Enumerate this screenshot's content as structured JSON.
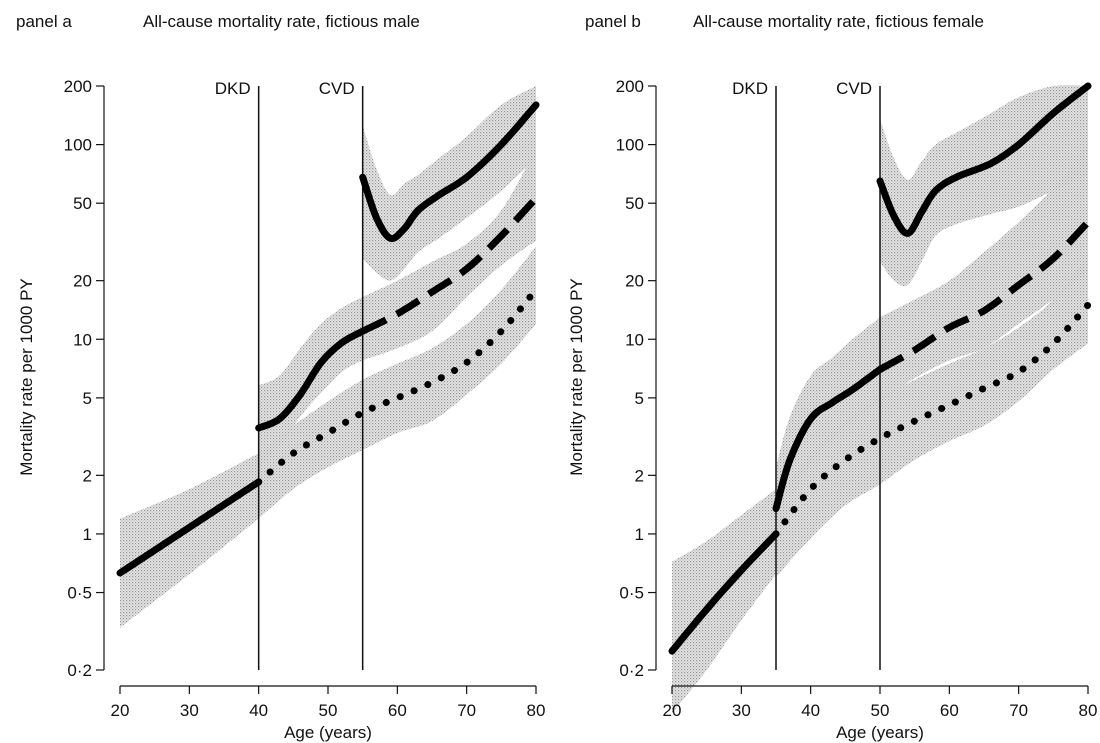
{
  "chart_data": [
    {
      "type": "line",
      "panel_label": "panel a",
      "title": "All-cause mortality rate, fictious male",
      "xlabel": "Age (years)",
      "ylabel": "Mortality rate per 1000 PY",
      "xlim": [
        20,
        80
      ],
      "ylim": [
        0.2,
        200
      ],
      "yscale": "log",
      "grid": false,
      "x_ticks": [
        20,
        30,
        40,
        50,
        60,
        70,
        80
      ],
      "x_tick_labels": [
        "20",
        "30",
        "40",
        "50",
        "60",
        "70",
        "80"
      ],
      "y_ticks": [
        0.2,
        0.5,
        1,
        2,
        5,
        10,
        20,
        50,
        100,
        200
      ],
      "y_tick_labels": [
        "0·2",
        "0·5",
        "1",
        "2",
        "5",
        "10",
        "20",
        "50",
        "100",
        "200"
      ],
      "events": [
        {
          "label": "DKD",
          "x": 40
        },
        {
          "label": "CVD",
          "x": 55
        }
      ],
      "series": [
        {
          "style": "solid",
          "x": [
            20,
            30,
            40
          ],
          "y": [
            0.63,
            1.08,
            1.85
          ],
          "lower": [
            0.33,
            0.62,
            1.2
          ],
          "upper": [
            1.2,
            1.7,
            2.6
          ]
        },
        {
          "style": "solid",
          "x": [
            40,
            43,
            46,
            49,
            52,
            55
          ],
          "y": [
            3.5,
            3.9,
            5.2,
            7.6,
            9.6,
            11
          ],
          "lower": [
            2.2,
            2.8,
            4.0,
            5.3,
            6.8,
            7.8
          ],
          "upper": [
            5.8,
            6.5,
            9.0,
            12,
            14.5,
            16.5
          ]
        },
        {
          "style": "dashed",
          "x": [
            55,
            60,
            65,
            70,
            75,
            80
          ],
          "y": [
            11,
            13.5,
            17.5,
            23,
            34,
            53
          ],
          "lower": [
            7.8,
            9.0,
            11,
            16.5,
            24,
            32
          ],
          "upper": [
            16.5,
            20,
            25,
            31,
            46,
            95
          ]
        },
        {
          "style": "dotted",
          "x": [
            40,
            45,
            50,
            55,
            60,
            65,
            70,
            75,
            80
          ],
          "y": [
            1.85,
            2.6,
            3.3,
            4.2,
            5.0,
            6.0,
            7.6,
            11,
            18
          ],
          "lower": [
            1.2,
            1.7,
            2.2,
            2.7,
            3.3,
            3.8,
            5.2,
            7.5,
            12
          ],
          "upper": [
            2.6,
            3.6,
            4.8,
            6.2,
            7.5,
            9.0,
            12,
            18,
            30
          ]
        },
        {
          "style": "solid",
          "x": [
            55,
            57,
            59,
            61,
            63,
            66,
            70,
            75,
            80
          ],
          "y": [
            68,
            42,
            33,
            37,
            46,
            55,
            68,
            100,
            160
          ],
          "lower": [
            26,
            22,
            20,
            23,
            28,
            33,
            42,
            58,
            85
          ],
          "upper": [
            125,
            75,
            55,
            63,
            70,
            85,
            110,
            160,
            200
          ]
        }
      ]
    },
    {
      "type": "line",
      "panel_label": "panel b",
      "title": "All-cause mortality rate, fictious female",
      "xlabel": "Age (years)",
      "ylabel": "Mortality rate per 1000 PY",
      "xlim": [
        20,
        80
      ],
      "ylim": [
        0.2,
        200
      ],
      "yscale": "log",
      "grid": false,
      "x_ticks": [
        20,
        30,
        40,
        50,
        60,
        70,
        80
      ],
      "x_tick_labels": [
        "20",
        "30",
        "40",
        "50",
        "60",
        "70",
        "80"
      ],
      "y_ticks": [
        0.2,
        0.5,
        1,
        2,
        5,
        10,
        20,
        50,
        100,
        200
      ],
      "y_tick_labels": [
        "0·2",
        "0·5",
        "1",
        "2",
        "5",
        "10",
        "20",
        "50",
        "100",
        "200"
      ],
      "events": [
        {
          "label": "DKD",
          "x": 35
        },
        {
          "label": "CVD",
          "x": 50
        }
      ],
      "series": [
        {
          "style": "solid",
          "x": [
            20,
            25,
            30,
            35
          ],
          "y": [
            0.25,
            0.41,
            0.65,
            1.0
          ],
          "lower": [
            0.12,
            0.2,
            0.36,
            0.62
          ],
          "upper": [
            0.72,
            0.92,
            1.25,
            1.7
          ]
        },
        {
          "style": "solid",
          "x": [
            35,
            37,
            40,
            43,
            46,
            50
          ],
          "y": [
            1.35,
            2.4,
            3.9,
            4.7,
            5.5,
            7.0
          ],
          "lower": [
            0.72,
            1.4,
            2.3,
            3.0,
            3.8,
            4.8
          ],
          "upper": [
            2.2,
            4.0,
            6.5,
            8.0,
            10,
            13
          ]
        },
        {
          "style": "dashed",
          "x": [
            50,
            55,
            60,
            65,
            70,
            75,
            80
          ],
          "y": [
            7.0,
            8.8,
            11.5,
            14,
            19,
            26,
            40
          ],
          "lower": [
            4.8,
            6.3,
            7.8,
            9.0,
            12,
            16,
            22
          ],
          "upper": [
            13,
            16,
            20,
            28,
            40,
            60,
            100
          ]
        },
        {
          "style": "dotted",
          "x": [
            35,
            40,
            45,
            50,
            55,
            60,
            65,
            70,
            75,
            80
          ],
          "y": [
            1.0,
            1.7,
            2.4,
            3.1,
            3.8,
            4.6,
            5.6,
            6.8,
            9.5,
            15
          ],
          "lower": [
            0.6,
            0.95,
            1.4,
            1.8,
            2.4,
            3.0,
            3.6,
            4.8,
            7.0,
            9.5
          ],
          "upper": [
            1.5,
            2.6,
            3.8,
            5.0,
            6.2,
            7.5,
            9.0,
            11.5,
            16,
            27
          ]
        },
        {
          "style": "solid",
          "x": [
            50,
            52,
            54,
            56,
            58,
            61,
            66,
            70,
            75,
            80
          ],
          "y": [
            65,
            43,
            35,
            45,
            58,
            68,
            80,
            100,
            145,
            200
          ],
          "lower": [
            25,
            20,
            19,
            25,
            34,
            39,
            44,
            48,
            58,
            70
          ],
          "upper": [
            135,
            85,
            66,
            82,
            100,
            115,
            145,
            175,
            200,
            200
          ]
        }
      ]
    }
  ]
}
